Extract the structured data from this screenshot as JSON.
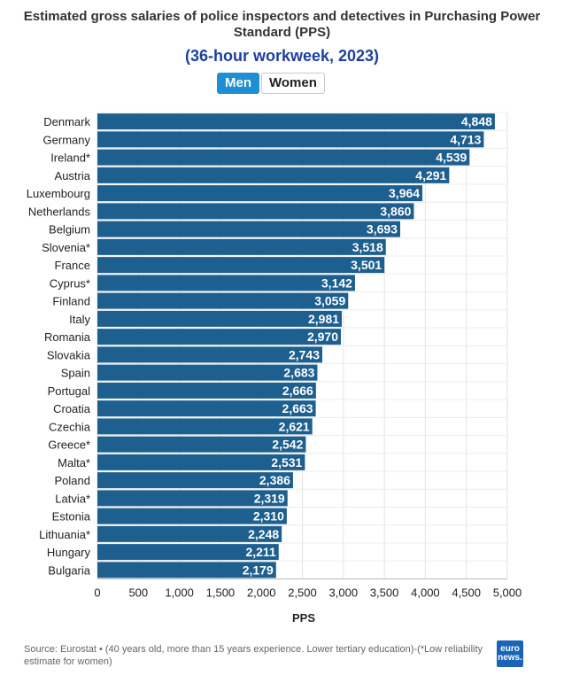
{
  "chart_data": {
    "type": "bar",
    "orientation": "horizontal",
    "title": "Estimated gross salaries of police inspectors and detectives in Purchasing Power Standard (PPS)",
    "subtitle": "(36-hour workweek, 2023)",
    "categories": [
      "Denmark",
      "Germany",
      "Ireland*",
      "Austria",
      "Luxembourg",
      "Netherlands",
      "Belgium",
      "Slovenia*",
      "France",
      "Cyprus*",
      "Finland",
      "Italy",
      "Romania",
      "Slovakia",
      "Spain",
      "Portugal",
      "Croatia",
      "Czechia",
      "Greece*",
      "Malta*",
      "Poland",
      "Latvia*",
      "Estonia",
      "Lithuania*",
      "Hungary",
      "Bulgaria"
    ],
    "values": [
      4848,
      4713,
      4539,
      4291,
      3964,
      3860,
      3693,
      3518,
      3501,
      3142,
      3059,
      2981,
      2970,
      2743,
      2683,
      2666,
      2663,
      2621,
      2542,
      2531,
      2386,
      2319,
      2310,
      2248,
      2211,
      2179
    ],
    "value_labels": [
      "4,848",
      "4,713",
      "4,539",
      "4,291",
      "3,964",
      "3,860",
      "3,693",
      "3,518",
      "3,501",
      "3,142",
      "3,059",
      "2,981",
      "2,970",
      "2,743",
      "2,683",
      "2,666",
      "2,663",
      "2,621",
      "2,542",
      "2,531",
      "2,386",
      "2,319",
      "2,310",
      "2,248",
      "2,211",
      "2,179"
    ],
    "xlabel": "PPS",
    "xlim": [
      0,
      5000
    ],
    "xticks": [
      0,
      500,
      1000,
      1500,
      2000,
      2500,
      3000,
      3500,
      4000,
      4500,
      5000
    ],
    "xtick_labels": [
      "0",
      "500",
      "1,000",
      "1,500",
      "2,000",
      "2,500",
      "3,000",
      "3,500",
      "4,000",
      "4,500",
      "5,000"
    ],
    "grid": true,
    "bar_color": "#1d5f8f"
  },
  "toggle": {
    "men_label": "Men",
    "women_label": "Women",
    "active": "Men"
  },
  "source_text": "Source: Eurostat • (40 years old, more than 15 years experience. Lower tertiary education)-(*Low reliability estimate for women)",
  "logo": {
    "line1": "euro",
    "line2": "news."
  },
  "colors": {
    "title": "#333333",
    "subtitle": "#1d3f9e",
    "toggle_active": "#1e8fd4",
    "grid": "#e3e3e3"
  }
}
